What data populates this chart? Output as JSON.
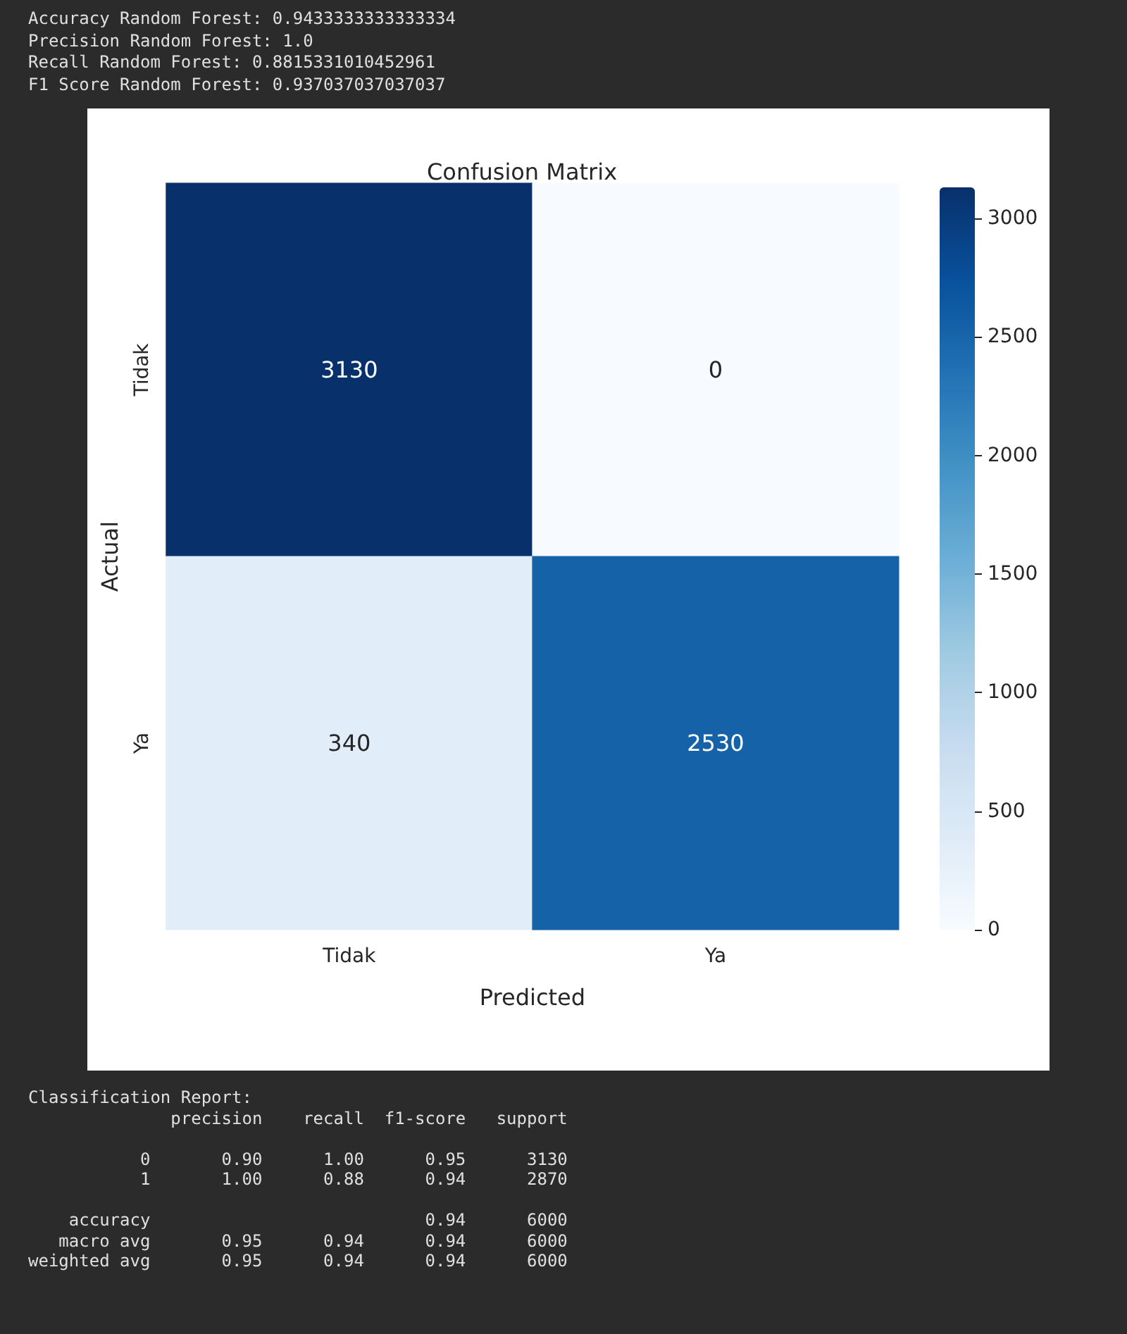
{
  "chart_data": {
    "type": "heatmap",
    "title": "Confusion Matrix",
    "xlabel": "Predicted",
    "ylabel": "Actual",
    "categories": [
      "Tidak",
      "Ya"
    ],
    "y_categories": [
      "Tidak",
      "Ya"
    ],
    "cells": [
      [
        3130,
        0
      ],
      [
        340,
        2530
      ]
    ],
    "clim": [
      0,
      3130
    ],
    "cticks": [
      0,
      500,
      1000,
      1500,
      2000,
      2500,
      3000
    ],
    "data_labels": true,
    "annotations": [
      "Accuracy Random Forest: 0.9433333333333334",
      "Precision Random Forest: 1.0",
      "Recall Random Forest: 0.8815331010452961",
      "F1 Score Random Forest: 0.937037037037037",
      "Classification Report:\n              precision    recall  f1-score   support\n\n           0       0.90      1.00      0.95      3130\n           1       1.00      0.88      0.94      2870\n\n    accuracy                           0.94      6000\n   macro avg       0.95      0.94      0.94      6000\nweighted avg       0.95      0.94      0.94      6000"
    ]
  }
}
